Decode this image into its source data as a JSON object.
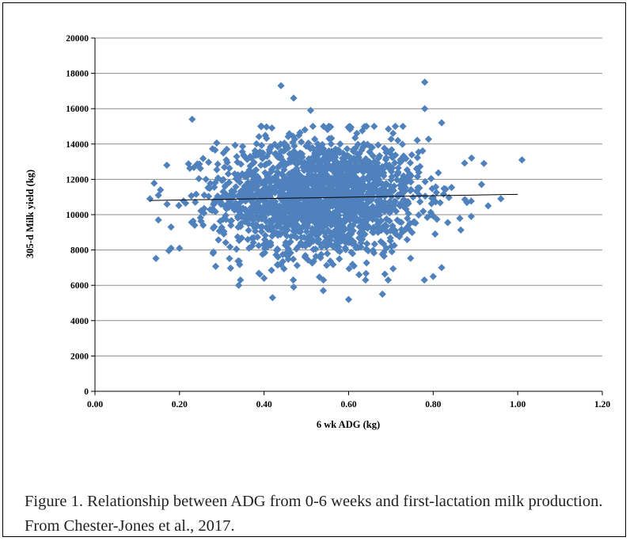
{
  "caption": "Figure 1. Relationship between ADG from 0-6 weeks and first-lactation milk production.  From Chester-Jones et al., 2017.",
  "colors": {
    "marker": "#4F81BD",
    "trendline": "#000000",
    "grid": "#8c8c8c"
  },
  "chart_data": {
    "type": "scatter",
    "xlabel": "6 wk ADG (kg)",
    "ylabel": "305-d Milk yield (kg)",
    "xlim": [
      0,
      1.2
    ],
    "ylim": [
      0,
      20000
    ],
    "x_ticks": [
      "0.00",
      "0.20",
      "0.40",
      "0.60",
      "0.80",
      "1.00",
      "1.20"
    ],
    "y_ticks": [
      "0",
      "2000",
      "4000",
      "6000",
      "8000",
      "10000",
      "12000",
      "14000",
      "16000",
      "18000",
      "20000"
    ],
    "grid": "horizontal",
    "marker": "diamond",
    "trendline": {
      "x": [
        0.13,
        1.0
      ],
      "y": [
        10800,
        11150
      ]
    },
    "distribution": {
      "x_mean": 0.53,
      "x_sd": 0.12,
      "y_mean": 11000,
      "y_sd": 1650,
      "approx_n": 2000
    },
    "notable_points": [
      {
        "x": 0.13,
        "y": 10900
      },
      {
        "x": 0.15,
        "y": 11100
      },
      {
        "x": 0.15,
        "y": 9700
      },
      {
        "x": 0.17,
        "y": 12800
      },
      {
        "x": 0.18,
        "y": 9300
      },
      {
        "x": 0.18,
        "y": 8100
      },
      {
        "x": 0.2,
        "y": 8100
      },
      {
        "x": 0.23,
        "y": 15400
      },
      {
        "x": 0.34,
        "y": 6000
      },
      {
        "x": 0.4,
        "y": 6400
      },
      {
        "x": 0.42,
        "y": 5300
      },
      {
        "x": 0.44,
        "y": 17300
      },
      {
        "x": 0.47,
        "y": 16600
      },
      {
        "x": 0.47,
        "y": 5900
      },
      {
        "x": 0.51,
        "y": 15900
      },
      {
        "x": 0.54,
        "y": 5700
      },
      {
        "x": 0.6,
        "y": 5200
      },
      {
        "x": 0.68,
        "y": 5500
      },
      {
        "x": 0.78,
        "y": 17500
      },
      {
        "x": 0.78,
        "y": 16000
      },
      {
        "x": 0.8,
        "y": 6500
      },
      {
        "x": 0.82,
        "y": 7000
      },
      {
        "x": 0.82,
        "y": 15200
      },
      {
        "x": 0.89,
        "y": 9900
      },
      {
        "x": 0.92,
        "y": 12900
      },
      {
        "x": 0.93,
        "y": 10500
      },
      {
        "x": 0.96,
        "y": 10900
      },
      {
        "x": 1.01,
        "y": 13100
      }
    ]
  }
}
